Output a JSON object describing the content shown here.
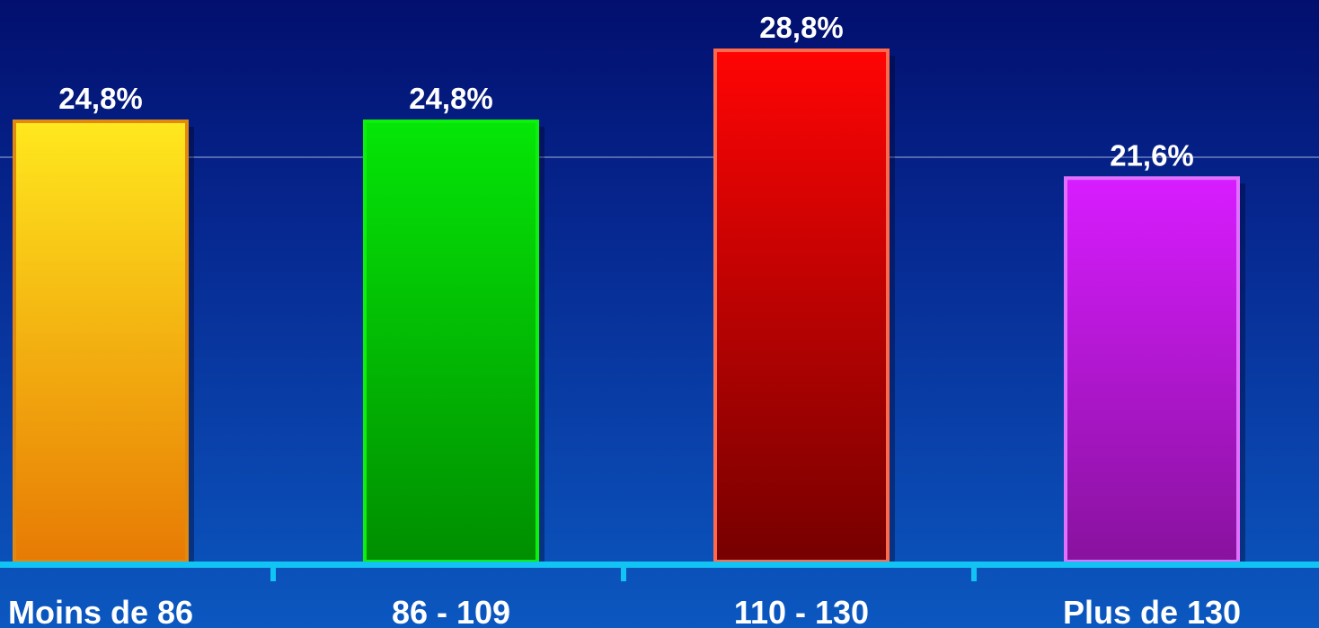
{
  "chart_data": {
    "type": "bar",
    "categories": [
      "Moins de 86",
      "86 - 109",
      "110 - 130",
      "Plus de 130"
    ],
    "values": [
      24.8,
      24.8,
      28.8,
      21.6
    ],
    "value_labels": [
      "24,8%",
      "24,8%",
      "28,8%",
      "21,6%"
    ],
    "title": "",
    "xlabel": "",
    "ylabel": "",
    "ylim": [
      0,
      30
    ],
    "grid": false,
    "legend": "none",
    "colors": [
      {
        "top": "#ffe81e",
        "bottom": "#e77a04",
        "border": "#e28a10"
      },
      {
        "top": "#05e607",
        "bottom": "#008e00",
        "border": "#0cf00c"
      },
      {
        "top": "#ff0404",
        "bottom": "#760000",
        "border": "#ff6a4d"
      },
      {
        "top": "#d81cff",
        "bottom": "#88129e",
        "border": "#e070ff"
      }
    ],
    "axis_color": "#12c4f3"
  }
}
